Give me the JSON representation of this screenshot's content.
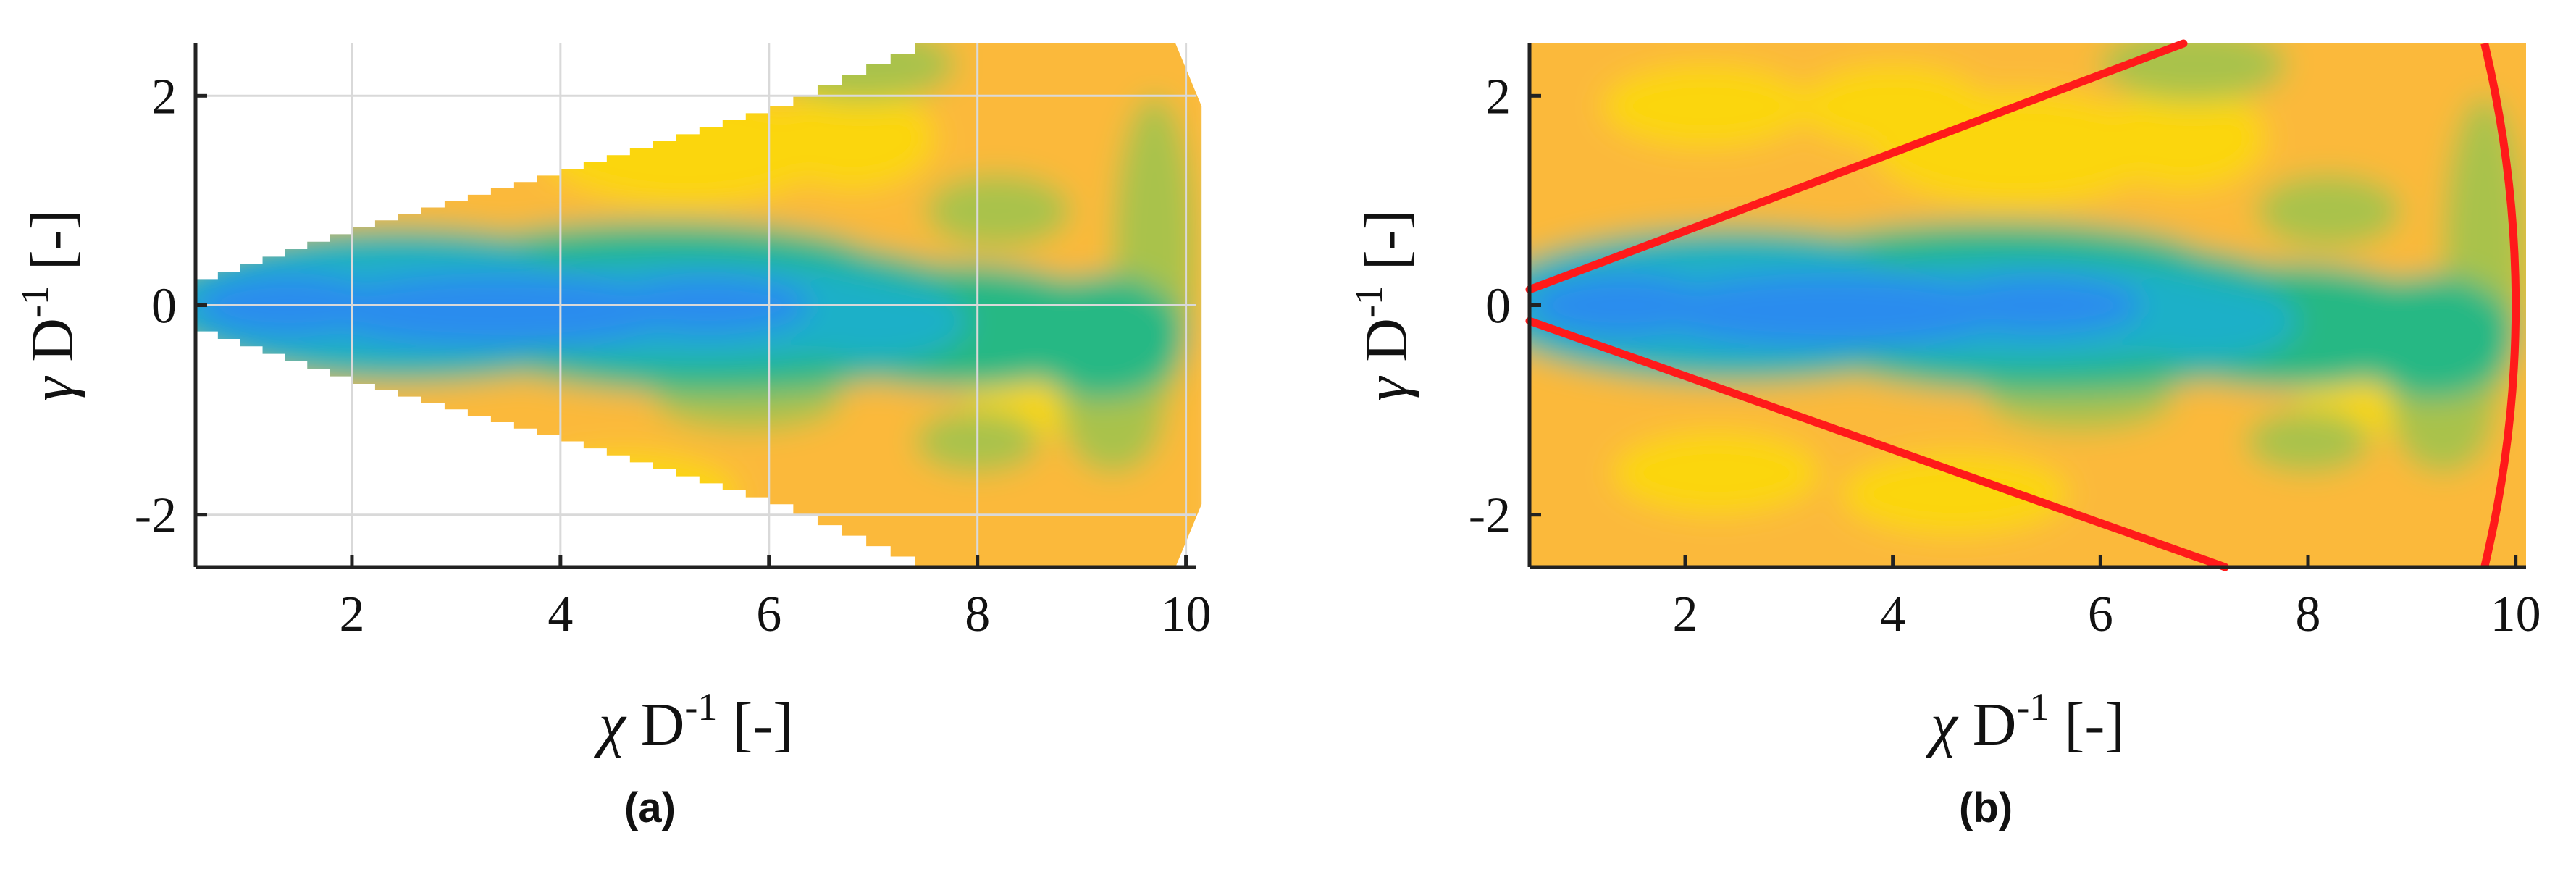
{
  "chart_data": [
    {
      "type": "heatmap",
      "panel": "(a)",
      "xlabel": "χ D-1 [-]",
      "ylabel": "γ D-1 [-]",
      "xlim": [
        0.5,
        10.1
      ],
      "ylim": [
        -2.5,
        2.5
      ],
      "xticks": [
        2,
        4,
        6,
        8,
        10
      ],
      "yticks": [
        -2,
        0,
        2
      ],
      "grid": true,
      "domain": "wedge",
      "wedge_half_width": [
        {
          "x": 0.5,
          "y": 0.25
        },
        {
          "x": 2.0,
          "y": 0.75
        },
        {
          "x": 4.0,
          "y": 1.3
        },
        {
          "x": 6.0,
          "y": 1.9
        },
        {
          "x": 7.4,
          "y": 2.5
        },
        {
          "x": 9.9,
          "y": 2.5
        }
      ],
      "field_description": "low values (blue) along centerline y≈0 for x 0.5–7, green transition band, high values (orange/yellow) in outer wake"
    },
    {
      "type": "heatmap",
      "panel": "(b)",
      "xlabel": "χ D-1 [-]",
      "ylabel": "γ D-1 [-]",
      "xlim": [
        0.5,
        10.1
      ],
      "ylim": [
        -2.5,
        2.5
      ],
      "xticks": [
        2,
        4,
        6,
        8,
        10
      ],
      "yticks": [
        -2,
        0,
        2
      ],
      "grid": false,
      "domain": "full rectangle",
      "overlay_lines": [
        {
          "name": "upper boundary",
          "color": "#ff1a1a",
          "points": [
            [
              0.5,
              0.15
            ],
            [
              6.8,
              2.5
            ]
          ]
        },
        {
          "name": "lower boundary",
          "color": "#ff1a1a",
          "points": [
            [
              0.5,
              -0.15
            ],
            [
              7.2,
              -2.5
            ]
          ]
        },
        {
          "name": "arc",
          "color": "#ff1a1a",
          "points": [
            [
              9.7,
              2.5
            ],
            [
              10.0,
              0.0
            ],
            [
              9.7,
              -2.5
            ]
          ]
        }
      ]
    }
  ],
  "captions": {
    "a": "(a)",
    "b": "(b)"
  },
  "axis_text": {
    "x_symbol": "χ",
    "y_symbol": "γ",
    "unit_base": "D",
    "unit_exp": "-1",
    "unit_bracket": "[-]"
  },
  "colors": {
    "blue": "#2b8cee",
    "cyan": "#1fb0c8",
    "green": "#27b884",
    "olive": "#a9c24b",
    "orange": "#fbb93a",
    "yellow": "#fbd60e",
    "red": "#ff1a1a"
  }
}
